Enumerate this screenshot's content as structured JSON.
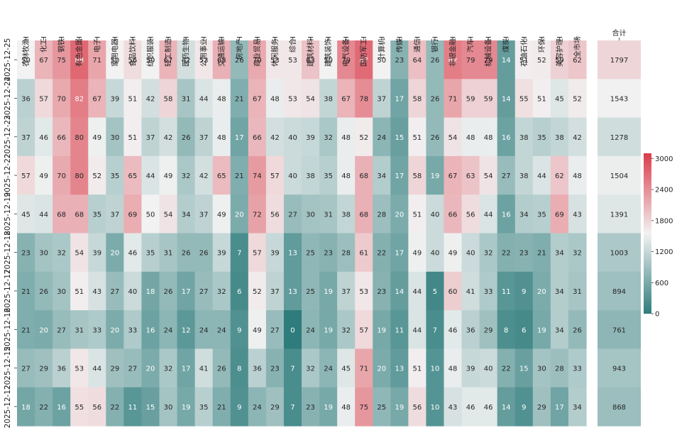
{
  "chart_data": {
    "type": "heatmap",
    "columns": [
      "农林牧渔I",
      "化工I",
      "钢铁I",
      "有色金属I",
      "电子I",
      "家用电器I",
      "食品饮料I",
      "纺织服装I",
      "轻工制造I",
      "医药生物I",
      "公用事业I",
      "交通运输I",
      "房地产I",
      "商业贸易I",
      "休闲服务I",
      "综合I",
      "建筑材料I",
      "建筑装饰I",
      "电气设备I",
      "国防军工I",
      "计算机I",
      "传媒I",
      "通信I",
      "银行I",
      "非银金融I",
      "汽车I",
      "机械设备I",
      "煤炭I",
      "石油石化I",
      "环保I",
      "美容护理I",
      "全市场"
    ],
    "rows": [
      "2025-12-25",
      "2025-12-24",
      "2025-12-23",
      "2025-12-22",
      "2025-12-19",
      "2025-12-18",
      "2025-12-17",
      "2025-12-16",
      "2025-12-15",
      "2025-12-12"
    ],
    "values": [
      [
        50,
        67,
        75,
        88,
        71,
        50,
        56,
        50,
        67,
        42,
        53,
        68,
        26,
        70,
        53,
        53,
        63,
        50,
        79,
        87,
        50,
        23,
        64,
        26,
        82,
        79,
        79,
        14,
        51,
        52,
        59,
        62
      ],
      [
        36,
        57,
        70,
        82,
        67,
        39,
        51,
        42,
        58,
        31,
        44,
        48,
        21,
        67,
        48,
        53,
        54,
        38,
        67,
        78,
        37,
        17,
        58,
        26,
        71,
        59,
        59,
        14,
        55,
        51,
        45,
        52
      ],
      [
        37,
        46,
        66,
        80,
        49,
        30,
        51,
        37,
        42,
        26,
        37,
        48,
        17,
        66,
        42,
        40,
        39,
        32,
        48,
        52,
        24,
        15,
        51,
        26,
        54,
        48,
        48,
        16,
        38,
        35,
        38,
        42
      ],
      [
        57,
        49,
        70,
        80,
        52,
        35,
        65,
        44,
        49,
        32,
        42,
        65,
        21,
        74,
        57,
        40,
        38,
        35,
        48,
        68,
        34,
        17,
        58,
        19,
        67,
        63,
        54,
        27,
        38,
        44,
        62,
        48
      ],
      [
        45,
        44,
        68,
        68,
        35,
        37,
        69,
        50,
        54,
        34,
        37,
        49,
        20,
        72,
        56,
        27,
        30,
        31,
        38,
        68,
        28,
        20,
        51,
        40,
        66,
        56,
        44,
        16,
        34,
        35,
        69,
        43
      ],
      [
        23,
        30,
        32,
        54,
        39,
        20,
        46,
        35,
        31,
        26,
        26,
        39,
        7,
        57,
        39,
        13,
        25,
        23,
        28,
        61,
        22,
        17,
        49,
        40,
        49,
        40,
        32,
        22,
        23,
        21,
        34,
        32
      ],
      [
        21,
        26,
        30,
        51,
        43,
        27,
        40,
        18,
        26,
        17,
        27,
        32,
        6,
        52,
        37,
        13,
        25,
        19,
        37,
        53,
        23,
        14,
        44,
        5,
        60,
        41,
        33,
        11,
        9,
        20,
        34,
        31
      ],
      [
        21,
        20,
        27,
        31,
        33,
        20,
        33,
        16,
        24,
        12,
        24,
        24,
        9,
        49,
        27,
        0,
        24,
        19,
        32,
        57,
        19,
        11,
        44,
        7,
        46,
        36,
        29,
        8,
        6,
        19,
        34,
        26
      ],
      [
        27,
        29,
        36,
        53,
        44,
        29,
        27,
        20,
        32,
        17,
        41,
        26,
        8,
        36,
        23,
        7,
        32,
        24,
        45,
        71,
        20,
        13,
        51,
        10,
        48,
        39,
        40,
        22,
        15,
        30,
        28,
        33
      ],
      [
        18,
        22,
        16,
        55,
        56,
        22,
        11,
        15,
        30,
        19,
        35,
        21,
        9,
        24,
        29,
        7,
        23,
        19,
        48,
        75,
        25,
        19,
        56,
        10,
        43,
        46,
        46,
        14,
        9,
        29,
        17,
        34
      ]
    ],
    "cell_range": [
      0,
      100
    ],
    "total": {
      "label": "合计",
      "values": [
        1797,
        1543,
        1278,
        1504,
        1391,
        1003,
        894,
        761,
        943,
        868
      ],
      "range": [
        0,
        3100
      ]
    },
    "colorbar": {
      "ticks": [
        0,
        600,
        1200,
        1800,
        2400,
        3000
      ],
      "range": [
        0,
        3100
      ]
    },
    "colormap": {
      "low": "#2e7c7c",
      "mid": "#f2f2f2",
      "high": "#da3c4a"
    },
    "annotate": true,
    "xlabel_position": "top",
    "grid": false
  }
}
